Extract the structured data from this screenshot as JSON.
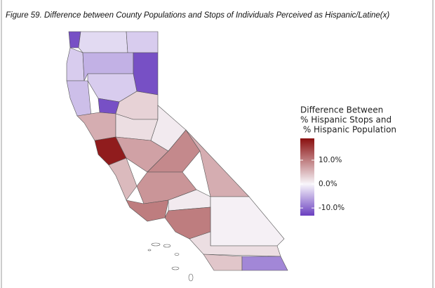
{
  "chart_data": {
    "type": "choropleth",
    "title": "Figure 59. Difference between County Populations and Stops of Individuals Perceived as Hispanic/Latine(x)",
    "legend_title": [
      "Difference Between",
      "% Hispanic Stops and",
      " % Hispanic Population"
    ],
    "values": [
      -12,
      -2,
      -3,
      -3,
      -5,
      -12,
      -4,
      -3,
      -12,
      3,
      6,
      2,
      18,
      7,
      1,
      5,
      9,
      8,
      6,
      10,
      1,
      0.5,
      10,
      2,
      4,
      -8
    ],
    "ylim": [
      -13.2,
      19.1
    ],
    "yticks": [
      {
        "value": 10,
        "label": "10.0%"
      },
      {
        "value": 0,
        "label": "0.0%"
      },
      {
        "value": -10,
        "label": "-10.0%"
      }
    ],
    "colors": {
      "low": "#6a3fc0",
      "mid": "#f8f6fb",
      "high": "#8a0f0f"
    }
  }
}
